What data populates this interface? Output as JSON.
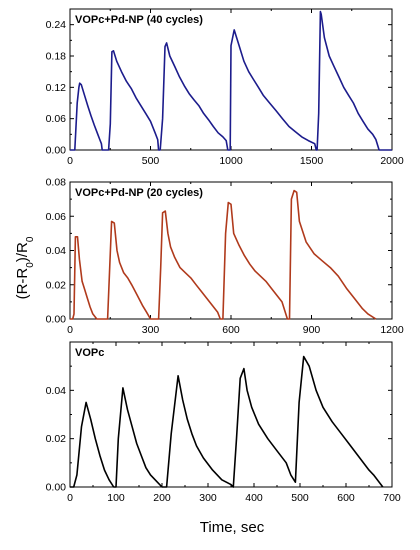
{
  "figure": {
    "ylabel": {
      "main": "(R-R",
      "sub0": "0",
      "mid": ")/R",
      "sub1": "0"
    },
    "xlabel": "Time, sec"
  },
  "chart_data": [
    {
      "type": "line",
      "title": "VOPc+Pd-NP (40 cycles)",
      "line_color": "#1c1c8c",
      "xlim": [
        0,
        2000
      ],
      "ylim": [
        0,
        0.27
      ],
      "xticks": [
        "0",
        "500",
        "1000",
        "1500",
        "2000"
      ],
      "yticks": [
        "0.00",
        "0.06",
        "0.12",
        "0.18",
        "0.24"
      ],
      "xtick_values": [
        0,
        500,
        1000,
        1500,
        2000
      ],
      "ytick_values": [
        0,
        0.06,
        0.12,
        0.18,
        0.24
      ],
      "series": [
        {
          "x": [
            0,
            15,
            30,
            45,
            55,
            60,
            70,
            90,
            110,
            130,
            150,
            170,
            185,
            195,
            200,
            240,
            250,
            260,
            270,
            290,
            320,
            350,
            380,
            410,
            440,
            470,
            500,
            530,
            545,
            550,
            560,
            575,
            590,
            600,
            620,
            650,
            680,
            710,
            740,
            770,
            800,
            830,
            860,
            890,
            920,
            950,
            970,
            980,
            995,
            1000,
            1020,
            1050,
            1080,
            1110,
            1140,
            1170,
            1200,
            1240,
            1280,
            1320,
            1360,
            1400,
            1440,
            1480,
            1520,
            1530,
            1535,
            1545,
            1555,
            1560,
            1580,
            1610,
            1640,
            1670,
            1700,
            1730,
            1760,
            1790,
            1820,
            1850,
            1880,
            1900,
            1920,
            2000
          ],
          "y": [
            0,
            0,
            0,
            0.09,
            0.12,
            0.128,
            0.125,
            0.105,
            0.085,
            0.066,
            0.048,
            0.032,
            0.02,
            0.012,
            0,
            0,
            0.05,
            0.188,
            0.19,
            0.17,
            0.15,
            0.132,
            0.118,
            0.1,
            0.085,
            0.07,
            0.055,
            0.032,
            0.02,
            0,
            0,
            0.06,
            0.198,
            0.205,
            0.18,
            0.16,
            0.14,
            0.123,
            0.108,
            0.096,
            0.085,
            0.07,
            0.058,
            0.045,
            0.033,
            0.025,
            0.018,
            0,
            0,
            0.2,
            0.23,
            0.2,
            0.17,
            0.15,
            0.135,
            0.12,
            0.105,
            0.09,
            0.075,
            0.06,
            0.045,
            0.035,
            0.025,
            0.018,
            0.012,
            0,
            0,
            0.07,
            0.265,
            0.26,
            0.215,
            0.18,
            0.16,
            0.14,
            0.12,
            0.105,
            0.09,
            0.07,
            0.055,
            0.04,
            0.03,
            0.02,
            0,
            0
          ]
        }
      ]
    },
    {
      "type": "line",
      "title": "VOPc+Pd-NP (20 cycles)",
      "line_color": "#b03a1c",
      "xlim": [
        0,
        1200
      ],
      "ylim": [
        0,
        0.08
      ],
      "xticks": [
        "0",
        "300",
        "600",
        "900",
        "1200"
      ],
      "yticks": [
        "0.00",
        "0.02",
        "0.04",
        "0.06",
        "0.08"
      ],
      "xtick_values": [
        0,
        300,
        600,
        900,
        1200
      ],
      "ytick_values": [
        0,
        0.02,
        0.04,
        0.06,
        0.08
      ],
      "series": [
        {
          "x": [
            0,
            10,
            15,
            20,
            28,
            35,
            45,
            55,
            65,
            75,
            85,
            100,
            115,
            125,
            140,
            148,
            155,
            165,
            175,
            185,
            200,
            215,
            230,
            250,
            270,
            285,
            300,
            330,
            338,
            345,
            355,
            365,
            375,
            390,
            410,
            430,
            450,
            470,
            490,
            510,
            530,
            550,
            560,
            570,
            580,
            590,
            600,
            610,
            630,
            650,
            670,
            690,
            710,
            730,
            750,
            770,
            790,
            810,
            818,
            825,
            835,
            845,
            855,
            880,
            910,
            940,
            970,
            1000,
            1030,
            1060,
            1090,
            1110,
            1140
          ],
          "y": [
            0,
            0,
            0.003,
            0.048,
            0.048,
            0.035,
            0.022,
            0.017,
            0.012,
            0.007,
            0.003,
            0,
            0,
            0,
            0,
            0.03,
            0.057,
            0.056,
            0.04,
            0.033,
            0.027,
            0.024,
            0.02,
            0.014,
            0.008,
            0.004,
            0,
            0,
            0.03,
            0.062,
            0.063,
            0.05,
            0.042,
            0.036,
            0.03,
            0.027,
            0.024,
            0.02,
            0.016,
            0.012,
            0.008,
            0.004,
            0,
            0,
            0.05,
            0.068,
            0.067,
            0.05,
            0.043,
            0.037,
            0.032,
            0.028,
            0.025,
            0.022,
            0.018,
            0.014,
            0.01,
            0,
            0,
            0.07,
            0.075,
            0.074,
            0.057,
            0.045,
            0.038,
            0.034,
            0.03,
            0.025,
            0.018,
            0.012,
            0.006,
            0.003,
            0
          ]
        }
      ]
    },
    {
      "type": "line",
      "title": "VOPc",
      "line_color": "#000000",
      "xlim": [
        0,
        700
      ],
      "ylim": [
        0,
        0.06
      ],
      "xticks": [
        "0",
        "100",
        "200",
        "300",
        "400",
        "500",
        "600",
        "700"
      ],
      "yticks": [
        "0.00",
        "0.02",
        "0.04"
      ],
      "xtick_values": [
        0,
        100,
        200,
        300,
        400,
        500,
        600,
        700
      ],
      "ytick_values": [
        0,
        0.02,
        0.04
      ],
      "series": [
        {
          "x": [
            0,
            8,
            15,
            25,
            35,
            45,
            55,
            65,
            75,
            85,
            95,
            100,
            105,
            115,
            125,
            135,
            145,
            155,
            165,
            175,
            190,
            200,
            210,
            220,
            235,
            245,
            255,
            265,
            275,
            290,
            310,
            330,
            350,
            355,
            362,
            370,
            378,
            385,
            395,
            410,
            430,
            450,
            470,
            480,
            490,
            498,
            508,
            520,
            535,
            550,
            570,
            590,
            610,
            630,
            650,
            660,
            680
          ],
          "y": [
            0,
            0,
            0.005,
            0.025,
            0.035,
            0.028,
            0.02,
            0.013,
            0.007,
            0.003,
            0,
            0,
            0.02,
            0.041,
            0.032,
            0.025,
            0.018,
            0.013,
            0.008,
            0.005,
            0.002,
            0,
            0,
            0.022,
            0.046,
            0.036,
            0.028,
            0.022,
            0.017,
            0.012,
            0.007,
            0.003,
            0.001,
            0,
            0.02,
            0.045,
            0.049,
            0.04,
            0.033,
            0.026,
            0.02,
            0.015,
            0.01,
            0.005,
            0.002,
            0.035,
            0.054,
            0.05,
            0.04,
            0.033,
            0.027,
            0.022,
            0.017,
            0.012,
            0.007,
            0.005,
            0
          ]
        }
      ]
    }
  ]
}
